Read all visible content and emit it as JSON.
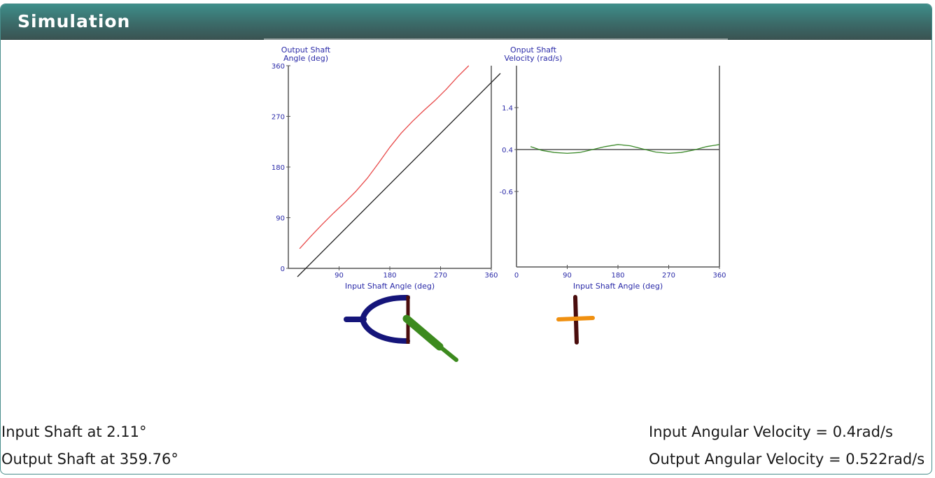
{
  "header": {
    "title": "Simulation"
  },
  "readouts": {
    "input_shaft": "Input Shaft at 2.11°",
    "output_shaft": "Output Shaft at 359.76°",
    "input_velocity": "Input Angular Velocity = 0.4rad/s",
    "output_velocity": "Output Angular Velocity = 0.522rad/s"
  },
  "colors": {
    "header_top": "#3e8e8a",
    "header_bottom": "#3a5352",
    "output_angle_curve": "#e84a4a",
    "reference_line": "#222222",
    "velocity_curve": "#3c8a2a",
    "axis_text": "#2a2aa8",
    "yoke": "#15157a",
    "input_shaft": "#3c8a1e",
    "cross_vertical": "#4a0d0d",
    "cross_horizontal": "#f09010"
  },
  "chart_data": [
    {
      "type": "line",
      "title": "",
      "ylabel_lines": [
        "Output Shaft",
        "Angle (deg)"
      ],
      "xlabel": "Input Shaft Angle (deg)",
      "xlim": [
        0,
        360
      ],
      "ylim": [
        0,
        360
      ],
      "x_ticks": [
        "90",
        "180",
        "270",
        "360"
      ],
      "y_ticks": [
        "0",
        "90",
        "180",
        "270",
        "360"
      ],
      "series": [
        {
          "values": [
            [
              20,
              35
            ],
            [
              40,
              57
            ],
            [
              60,
              78
            ],
            [
              80,
              98
            ],
            [
              100,
              117
            ],
            [
              120,
              137
            ],
            [
              140,
              160
            ],
            [
              160,
              187
            ],
            [
              180,
              215
            ],
            [
              200,
              240
            ],
            [
              220,
              261
            ],
            [
              240,
              280
            ],
            [
              260,
              298
            ],
            [
              280,
              318
            ],
            [
              300,
              340
            ],
            [
              320,
              360
            ]
          ]
        },
        {
          "values": [
            [
              20,
              0
            ],
            [
              360,
              340
            ]
          ]
        }
      ],
      "grid": false
    },
    {
      "type": "line",
      "title": "",
      "ylabel_lines": [
        "Onput Shaft",
        "Velocity (rad/s)"
      ],
      "xlabel": "Input Shaft Angle (deg)",
      "xlim": [
        0,
        360
      ],
      "ylim": [
        -2.4,
        2.4
      ],
      "x_ticks": [
        "0",
        "90",
        "180",
        "270",
        "360"
      ],
      "y_ticks": [
        "1.4",
        "0.4",
        "-0.6"
      ],
      "series": [
        {
          "values": [
            [
              25,
              0.47
            ],
            [
              45,
              0.38
            ],
            [
              67,
              0.33
            ],
            [
              90,
              0.31
            ],
            [
              112,
              0.33
            ],
            [
              135,
              0.4
            ],
            [
              157,
              0.47
            ],
            [
              180,
              0.52
            ],
            [
              202,
              0.49
            ],
            [
              225,
              0.41
            ],
            [
              247,
              0.34
            ],
            [
              270,
              0.31
            ],
            [
              292,
              0.33
            ],
            [
              315,
              0.39
            ],
            [
              337,
              0.47
            ],
            [
              360,
              0.52
            ]
          ]
        },
        {
          "values": [
            [
              0,
              0.4
            ],
            [
              360,
              0.4
            ]
          ]
        }
      ],
      "grid": false
    }
  ],
  "mechanism": {
    "icons": [
      "yoke-icon",
      "input-shaft-icon",
      "cross-icon"
    ]
  }
}
